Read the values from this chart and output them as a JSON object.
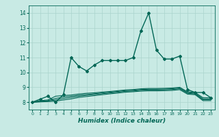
{
  "title": "",
  "xlabel": "Humidex (Indice chaleur)",
  "ylabel": "",
  "background_color": "#c8eae4",
  "grid_color": "#aad4cc",
  "line_color": "#006655",
  "xlim": [
    -0.5,
    23.5
  ],
  "ylim": [
    7.5,
    14.5
  ],
  "yticks": [
    8,
    9,
    10,
    11,
    12,
    13,
    14
  ],
  "xticks": [
    0,
    1,
    2,
    3,
    4,
    5,
    6,
    7,
    8,
    9,
    10,
    11,
    12,
    13,
    14,
    15,
    16,
    17,
    18,
    19,
    20,
    21,
    22,
    23
  ],
  "series": [
    {
      "x": [
        0,
        1,
        2,
        3,
        4,
        5,
        6,
        7,
        8,
        9,
        10,
        11,
        12,
        13,
        14,
        15,
        16,
        17,
        18,
        19,
        20,
        21,
        22,
        23
      ],
      "y": [
        8.0,
        8.2,
        8.4,
        8.0,
        8.5,
        11.0,
        10.4,
        10.1,
        10.5,
        10.8,
        10.8,
        10.8,
        10.8,
        11.0,
        12.8,
        14.0,
        11.5,
        10.9,
        10.9,
        11.1,
        8.85,
        8.65,
        8.65,
        8.3
      ],
      "marker": "D",
      "markersize": 2.0,
      "linewidth": 1.0,
      "zorder": 5
    },
    {
      "x": [
        0,
        1,
        2,
        3,
        4,
        5,
        6,
        7,
        8,
        9,
        10,
        11,
        12,
        13,
        14,
        15,
        16,
        17,
        18,
        19,
        20,
        21,
        22,
        23
      ],
      "y": [
        8.0,
        8.1,
        8.15,
        8.4,
        8.45,
        8.48,
        8.55,
        8.6,
        8.63,
        8.68,
        8.72,
        8.77,
        8.82,
        8.85,
        8.9,
        8.92,
        8.92,
        8.93,
        8.95,
        9.0,
        8.7,
        8.65,
        8.3,
        8.3
      ],
      "marker": null,
      "markersize": 0,
      "linewidth": 0.8,
      "zorder": 3
    },
    {
      "x": [
        0,
        1,
        2,
        3,
        4,
        5,
        6,
        7,
        8,
        9,
        10,
        11,
        12,
        13,
        14,
        15,
        16,
        17,
        18,
        19,
        20,
        21,
        22,
        23
      ],
      "y": [
        8.0,
        8.05,
        8.1,
        8.25,
        8.35,
        8.4,
        8.47,
        8.52,
        8.57,
        8.62,
        8.67,
        8.72,
        8.78,
        8.8,
        8.85,
        8.87,
        8.87,
        8.88,
        8.9,
        8.95,
        8.65,
        8.6,
        8.22,
        8.22
      ],
      "marker": null,
      "markersize": 0,
      "linewidth": 0.8,
      "zorder": 3
    },
    {
      "x": [
        0,
        1,
        2,
        3,
        4,
        5,
        6,
        7,
        8,
        9,
        10,
        11,
        12,
        13,
        14,
        15,
        16,
        17,
        18,
        19,
        20,
        21,
        22,
        23
      ],
      "y": [
        8.0,
        8.03,
        8.07,
        8.15,
        8.25,
        8.32,
        8.4,
        8.46,
        8.51,
        8.57,
        8.62,
        8.67,
        8.73,
        8.75,
        8.8,
        8.82,
        8.82,
        8.83,
        8.85,
        8.9,
        8.6,
        8.55,
        8.16,
        8.16
      ],
      "marker": null,
      "markersize": 0,
      "linewidth": 0.8,
      "zorder": 3
    },
    {
      "x": [
        0,
        1,
        2,
        3,
        4,
        5,
        6,
        7,
        8,
        9,
        10,
        11,
        12,
        13,
        14,
        15,
        16,
        17,
        18,
        19,
        20,
        21,
        22,
        23
      ],
      "y": [
        8.0,
        8.02,
        8.04,
        8.07,
        8.15,
        8.22,
        8.32,
        8.38,
        8.44,
        8.5,
        8.56,
        8.61,
        8.67,
        8.7,
        8.74,
        8.76,
        8.76,
        8.77,
        8.79,
        8.84,
        8.54,
        8.5,
        8.1,
        8.1
      ],
      "marker": null,
      "markersize": 0,
      "linewidth": 0.8,
      "zorder": 3
    }
  ]
}
